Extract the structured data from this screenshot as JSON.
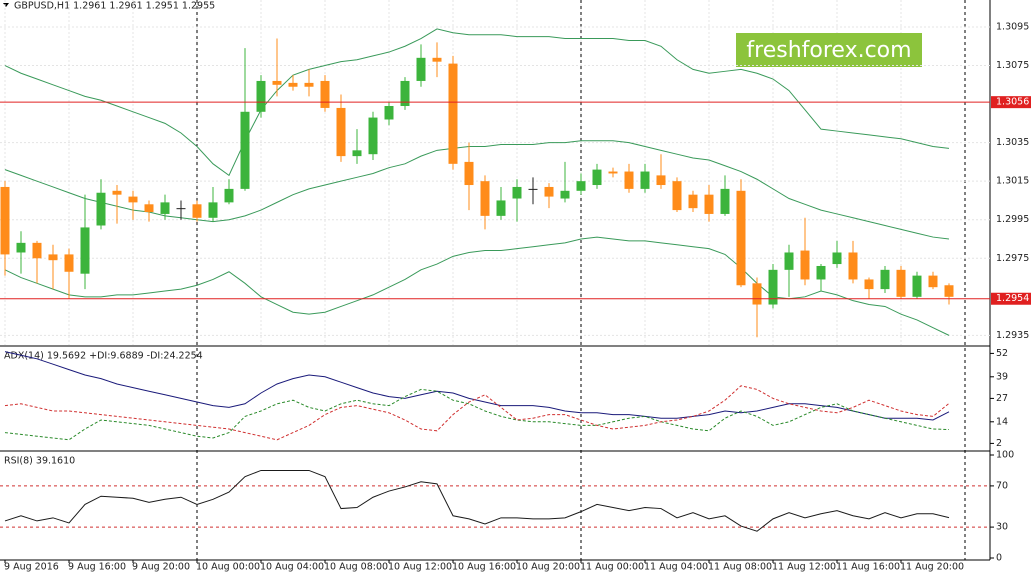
{
  "watermark": "freshforex.com",
  "chart_data": [
    {
      "type": "candlestick",
      "title": "GBPUSD,H1  1.2961 1.2961 1.2951 1.2955",
      "categories": [
        "9 Aug 2016",
        null,
        null,
        null,
        "9 Aug 16:00",
        null,
        null,
        null,
        "9 Aug 20:00",
        null,
        null,
        null,
        "10 Aug 00:00",
        null,
        null,
        null,
        "10 Aug 04:00",
        null,
        null,
        null,
        "10 Aug 08:00",
        null,
        null,
        null,
        "10 Aug 12:00",
        null,
        null,
        null,
        "10 Aug 16:00",
        null,
        null,
        null,
        "10 Aug 20:00",
        null,
        null,
        null,
        "11 Aug 00:00",
        null,
        null,
        null,
        "11 Aug 04:00",
        null,
        null,
        null,
        "11 Aug 08:00",
        null,
        null,
        null,
        "11 Aug 12:00",
        null,
        null,
        null,
        "11 Aug 16:00",
        null,
        null,
        null,
        "11 Aug 20:00",
        null,
        null,
        null
      ],
      "open": [
        1.3012,
        1.2978,
        1.2983,
        1.2977,
        1.2977,
        1.2967,
        1.2992,
        1.301,
        1.3007,
        1.3003,
        1.2998,
        1.3001,
        1.3003,
        1.2996,
        1.3004,
        1.3011,
        1.3051,
        1.3067,
        1.3066,
        1.3066,
        1.3067,
        1.3053,
        1.3028,
        1.3029,
        1.3047,
        1.3054,
        1.3067,
        1.3079,
        1.3076,
        1.3025,
        1.3015,
        1.2997,
        1.3006,
        1.3011,
        1.3012,
        1.3006,
        1.301,
        1.3013,
        1.302,
        1.302,
        1.3011,
        1.3018,
        1.3015,
        1.3008,
        1.3008,
        1.2998,
        1.301,
        1.2962,
        1.2951,
        1.2969,
        1.2979,
        1.2964,
        1.2972,
        1.2978,
        1.2964,
        1.2959,
        1.2969,
        1.2955,
        1.2966,
        1.2961
      ],
      "high": [
        1.3015,
        1.2989,
        1.2984,
        1.2982,
        1.298,
        1.3008,
        1.3016,
        1.3013,
        1.301,
        1.3005,
        1.3008,
        1.3005,
        1.3005,
        1.3012,
        1.3016,
        1.3084,
        1.307,
        1.3089,
        1.307,
        1.3073,
        1.307,
        1.306,
        1.3042,
        1.3051,
        1.3056,
        1.3069,
        1.3086,
        1.3087,
        1.308,
        1.3035,
        1.3018,
        1.3012,
        1.3016,
        1.3017,
        1.3014,
        1.3025,
        1.3019,
        1.3024,
        1.3022,
        1.3024,
        1.3024,
        1.3029,
        1.3017,
        1.301,
        1.3013,
        1.3018,
        1.3016,
        1.2965,
        1.2972,
        1.2982,
        1.2996,
        1.2972,
        1.2984,
        1.2984,
        1.2965,
        1.2971,
        1.2971,
        1.2968,
        1.2968,
        1.2962
      ],
      "low": [
        1.2966,
        1.2967,
        1.2962,
        1.2959,
        1.2954,
        1.2959,
        1.299,
        1.2993,
        1.2995,
        1.2994,
        1.2995,
        1.2995,
        1.2994,
        1.2994,
        1.3003,
        1.301,
        1.3048,
        1.3059,
        1.3062,
        1.3059,
        1.3051,
        1.3025,
        1.3024,
        1.3026,
        1.3044,
        1.3052,
        1.3064,
        1.3069,
        1.3021,
        1.3,
        1.299,
        1.2995,
        1.2994,
        1.3003,
        1.3001,
        1.3004,
        1.3008,
        1.3011,
        1.3017,
        1.3009,
        1.3009,
        1.3011,
        1.2999,
        1.2999,
        1.2994,
        1.2997,
        1.296,
        1.2934,
        1.2949,
        1.2955,
        1.2961,
        1.2958,
        1.297,
        1.2962,
        1.2954,
        1.2957,
        1.2954,
        1.2954,
        1.2959,
        1.2951
      ],
      "close": [
        1.2977,
        1.2983,
        1.2975,
        1.2974,
        1.2968,
        1.2991,
        1.3009,
        1.3008,
        1.3004,
        1.2999,
        1.3004,
        1.3001,
        1.2996,
        1.3004,
        1.3011,
        1.3051,
        1.3067,
        1.3065,
        1.3064,
        1.3064,
        1.3053,
        1.3028,
        1.3031,
        1.3048,
        1.3054,
        1.3067,
        1.3079,
        1.3077,
        1.3024,
        1.3013,
        1.2997,
        1.3005,
        1.3012,
        1.3011,
        1.3007,
        1.301,
        1.3015,
        1.3021,
        1.3019,
        1.3011,
        1.302,
        1.3013,
        1.3,
        1.3001,
        1.2998,
        1.3011,
        1.2961,
        1.2951,
        1.2969,
        1.2978,
        1.2964,
        1.2971,
        1.2978,
        1.2964,
        1.2959,
        1.2969,
        1.2955,
        1.2966,
        1.296,
        1.2955
      ],
      "up_color": "#3cb43c",
      "down_color": "#ff8c1a",
      "overlays": [
        {
          "color": "#3a9a5a",
          "values": [
            1.3075,
            1.3071,
            1.3068,
            1.3065,
            1.3062,
            1.3059,
            1.3057,
            1.3054,
            1.3051,
            1.3048,
            1.3045,
            1.304,
            1.3033,
            1.3024,
            1.3018,
            1.3036,
            1.3052,
            1.3062,
            1.307,
            1.3073,
            1.3075,
            1.3077,
            1.3078,
            1.308,
            1.3082,
            1.3085,
            1.3089,
            1.3094,
            1.3092,
            1.3091,
            1.3091,
            1.3091,
            1.309,
            1.309,
            1.309,
            1.3089,
            1.3089,
            1.3089,
            1.3089,
            1.3088,
            1.3088,
            1.3085,
            1.3078,
            1.3073,
            1.3071,
            1.3072,
            1.3073,
            1.3071,
            1.3068,
            1.3062,
            1.3052,
            1.3042,
            1.3041,
            1.304,
            1.3039,
            1.3038,
            1.3037,
            1.3035,
            1.3033,
            1.3032
          ]
        },
        {
          "color": "#3a9a5a",
          "values": [
            1.3021,
            1.3018,
            1.3015,
            1.3012,
            1.3009,
            1.3006,
            1.3004,
            1.3002,
            1.3,
            1.2999,
            1.2997,
            1.2996,
            1.2995,
            1.2994,
            1.2995,
            1.2997,
            1.3,
            1.3004,
            1.3008,
            1.3011,
            1.3013,
            1.3015,
            1.3017,
            1.3019,
            1.3022,
            1.3024,
            1.3028,
            1.3031,
            1.3032,
            1.3033,
            1.3033,
            1.3034,
            1.3034,
            1.3034,
            1.3035,
            1.3035,
            1.3036,
            1.3036,
            1.3036,
            1.3035,
            1.3033,
            1.3031,
            1.3029,
            1.3027,
            1.3026,
            1.3023,
            1.302,
            1.3016,
            1.3011,
            1.3006,
            1.3003,
            1.3,
            1.2998,
            1.2996,
            1.2994,
            1.2992,
            1.299,
            1.2988,
            1.2986,
            1.2985
          ]
        },
        {
          "color": "#3a9a5a",
          "values": [
            1.2969,
            1.2965,
            1.2962,
            1.2959,
            1.2956,
            1.2955,
            1.2955,
            1.2956,
            1.2956,
            1.2957,
            1.2958,
            1.2959,
            1.2961,
            1.2964,
            1.2968,
            1.2962,
            1.2955,
            1.2951,
            1.2947,
            1.2946,
            1.2947,
            1.295,
            1.2953,
            1.2956,
            1.296,
            1.2964,
            1.2969,
            1.2972,
            1.2976,
            1.2978,
            1.2979,
            1.2979,
            1.298,
            1.2981,
            1.2982,
            1.2983,
            1.2985,
            1.2986,
            1.2985,
            1.2984,
            1.2984,
            1.2983,
            1.2982,
            1.2981,
            1.298,
            1.2977,
            1.297,
            1.2962,
            1.2955,
            1.2954,
            1.2955,
            1.2958,
            1.2956,
            1.2953,
            1.2951,
            1.295,
            1.2946,
            1.2943,
            1.2939,
            1.2935
          ]
        }
      ],
      "hlines": [
        {
          "value": 1.3056,
          "color": "#e02020"
        },
        {
          "value": 1.2954,
          "color": "#e02020"
        }
      ],
      "ylim": [
        1.293,
        1.3109
      ],
      "yticks": [
        1.3095,
        1.3075,
        1.3035,
        1.3015,
        1.2995,
        1.2975,
        1.2935
      ],
      "grid": true
    },
    {
      "type": "line",
      "title": "ADX(14) 19.5692 +DI:9.6889 -DI:24.2254",
      "ylim": [
        0,
        55
      ],
      "yticks": [
        52,
        39,
        27,
        14,
        2
      ],
      "series": [
        {
          "color": "#1a1a7a",
          "dashed": false,
          "values": [
            53,
            51,
            49,
            46,
            43,
            40,
            38,
            35,
            33,
            31,
            29,
            27,
            25,
            23,
            22,
            24,
            30,
            35,
            38,
            40,
            39,
            36,
            33,
            30,
            28,
            27,
            29,
            31,
            30,
            27,
            25,
            23,
            23,
            23,
            22,
            20,
            19,
            19,
            18,
            18,
            17,
            16,
            16,
            17,
            18,
            20,
            19,
            20,
            22,
            24,
            24,
            23,
            22,
            20,
            18,
            16,
            16,
            16,
            15,
            19.5692
          ]
        },
        {
          "color": "#2a8a2a",
          "dashed": true,
          "values": [
            8,
            7,
            6,
            5,
            4,
            10,
            15,
            14,
            13,
            12,
            10,
            8,
            6,
            5,
            8,
            17,
            20,
            24,
            26,
            22,
            20,
            24,
            26,
            24,
            23,
            28,
            32,
            31,
            26,
            24,
            20,
            17,
            15,
            14,
            14,
            13,
            12,
            12,
            14,
            16,
            17,
            14,
            12,
            10,
            9,
            16,
            20,
            17,
            12,
            14,
            18,
            22,
            24,
            20,
            18,
            16,
            14,
            12,
            10,
            9.6889
          ]
        },
        {
          "color": "#d03030",
          "dashed": true,
          "values": [
            23,
            24,
            22,
            20,
            20,
            19,
            18,
            17,
            16,
            15,
            14,
            13,
            12,
            11,
            10,
            8,
            6,
            4,
            8,
            12,
            18,
            22,
            23,
            21,
            19,
            15,
            10,
            9,
            18,
            25,
            29,
            22,
            15,
            16,
            18,
            18,
            15,
            12,
            10,
            11,
            12,
            14,
            15,
            17,
            20,
            26,
            34,
            32,
            27,
            24,
            22,
            20,
            19,
            22,
            26,
            23,
            20,
            18,
            17,
            24.2254
          ]
        }
      ]
    },
    {
      "type": "line",
      "title": "RSI(8) 39.1610",
      "ylim": [
        0,
        100
      ],
      "yticks": [
        100,
        70,
        30,
        0
      ],
      "levels": [
        70,
        30
      ],
      "level_color": "#d03030",
      "series": [
        {
          "color": "#1a1a1a",
          "dashed": false,
          "values": [
            36,
            41,
            36,
            39,
            34,
            52,
            60,
            59,
            58,
            54,
            57,
            59,
            52,
            57,
            64,
            79,
            85,
            85,
            85,
            85,
            79,
            48,
            49,
            59,
            65,
            69,
            74,
            72,
            41,
            38,
            33,
            39,
            39,
            38,
            38,
            39,
            45,
            52,
            49,
            46,
            49,
            48,
            39,
            44,
            38,
            41,
            31,
            26,
            38,
            44,
            39,
            43,
            46,
            41,
            38,
            44,
            39,
            43,
            43,
            39.161
          ]
        }
      ]
    }
  ]
}
